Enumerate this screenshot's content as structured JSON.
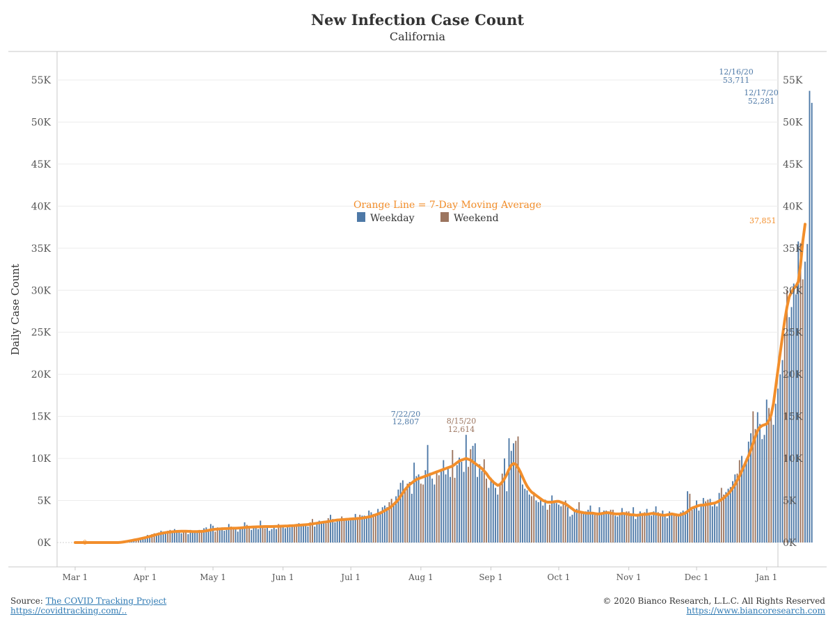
{
  "header": {
    "title": "New Infection Case Count",
    "subtitle": "California"
  },
  "footer": {
    "source_prefix": "Source:",
    "source_name": "The COVID Tracking Project",
    "source_url": "https://covidtracking.com/..",
    "copyright": "© 2020 Bianco Research, L.L.C. All Rights Reserved",
    "site_url": "https://www.biancoresearch.com"
  },
  "colors": {
    "weekday": "#4e79a7",
    "weekend": "#9c755f",
    "moving_average": "#f28e2b",
    "text": "#333333",
    "link": "#2f7ab3"
  },
  "chart_data": {
    "type": "bar",
    "title": "New Infection Case Count",
    "subtitle": "California",
    "ylabel": "Daily Case Count",
    "xlabel": "",
    "ylim": [
      0,
      58000
    ],
    "y_ticks": [
      "0K",
      "5K",
      "10K",
      "15K",
      "20K",
      "25K",
      "30K",
      "35K",
      "40K",
      "45K",
      "50K",
      "55K"
    ],
    "y_tick_values": [
      0,
      5000,
      10000,
      15000,
      20000,
      25000,
      30000,
      35000,
      40000,
      45000,
      50000,
      55000
    ],
    "x_range": [
      "2020-02-22",
      "2021-01-06"
    ],
    "x_ticks": [
      {
        "date": "2020-03-01",
        "label": "Mar 1"
      },
      {
        "date": "2020-04-01",
        "label": "Apr 1"
      },
      {
        "date": "2020-05-01",
        "label": "May 1"
      },
      {
        "date": "2020-06-01",
        "label": "Jun 1"
      },
      {
        "date": "2020-07-01",
        "label": "Jul 1"
      },
      {
        "date": "2020-08-01",
        "label": "Aug 1"
      },
      {
        "date": "2020-09-01",
        "label": "Sep 1"
      },
      {
        "date": "2020-10-01",
        "label": "Oct 1"
      },
      {
        "date": "2020-11-01",
        "label": "Nov 1"
      },
      {
        "date": "2020-12-01",
        "label": "Dec 1"
      },
      {
        "date": "2021-01-01",
        "label": "Jan 1"
      }
    ],
    "legend": {
      "title": "Orange Line = 7-Day Moving Average",
      "placement": "center",
      "items": [
        {
          "label": "Weekday",
          "color": "#4e79a7"
        },
        {
          "label": "Weekend",
          "color": "#9c755f"
        }
      ]
    },
    "series": [
      {
        "name": "Weekday",
        "type": "bar",
        "color": "#4e79a7"
      },
      {
        "name": "Weekend",
        "type": "bar",
        "color": "#9c755f"
      },
      {
        "name": "7-Day Moving Average",
        "type": "line",
        "color": "#f28e2b"
      }
    ],
    "start_date": "2020-03-01",
    "daily_cases": [
      0,
      0,
      0,
      0,
      0,
      0,
      0,
      0,
      0,
      0,
      0,
      0,
      0,
      0,
      0,
      0,
      0,
      0,
      0,
      0,
      100,
      150,
      200,
      250,
      300,
      350,
      400,
      450,
      500,
      600,
      650,
      700,
      900,
      700,
      1000,
      1100,
      900,
      1200,
      1400,
      1300,
      1100,
      1400,
      1500,
      1200,
      1600,
      1300,
      1300,
      1100,
      1400,
      1300,
      1000,
      1500,
      1400,
      1300,
      1200,
      1500,
      1300,
      1700,
      1800,
      1400,
      2200,
      2000,
      1300,
      1800,
      1500,
      1800,
      1400,
      1500,
      2200,
      1900,
      1700,
      1800,
      1300,
      1700,
      1900,
      2400,
      2100,
      1900,
      1500,
      1700,
      1800,
      1600,
      2600,
      2000,
      1700,
      1900,
      1400,
      1600,
      2000,
      1600,
      2200,
      1800,
      1900,
      1700,
      2000,
      1800,
      2100,
      2000,
      2200,
      2300,
      2100,
      2000,
      2200,
      1900,
      2400,
      2800,
      1900,
      2400,
      2600,
      2500,
      2400,
      2300,
      2900,
      3300,
      2800,
      2400,
      2600,
      2700,
      3100,
      2800,
      2900,
      2600,
      2800,
      2700,
      3400,
      2900,
      3300,
      3200,
      3200,
      2900,
      3800,
      3600,
      3400,
      3300,
      4000,
      3700,
      4200,
      4400,
      4200,
      4800,
      5200,
      4400,
      5500,
      6300,
      7100,
      7400,
      6200,
      7000,
      7200,
      5800,
      9500,
      7900,
      8100,
      7000,
      6900,
      8600,
      11600,
      8300,
      7600,
      6900,
      8400,
      8000,
      8700,
      9800,
      8100,
      8900,
      7800,
      11000,
      7700,
      9200,
      10100,
      9600,
      8400,
      12807,
      9000,
      11100,
      11500,
      11800,
      7800,
      9300,
      8500,
      9900,
      7600,
      6500,
      7700,
      7400,
      6500,
      5700,
      7000,
      8200,
      10000,
      6100,
      12400,
      10900,
      11800,
      12100,
      12614,
      8200,
      6900,
      6400,
      6200,
      5700,
      5500,
      6000,
      5000,
      4800,
      5200,
      4400,
      5100,
      3900,
      4500,
      5600,
      4800,
      4700,
      4500,
      4300,
      4700,
      5000,
      4200,
      3100,
      3300,
      3800,
      4000,
      4800,
      3500,
      3400,
      3700,
      3900,
      4400,
      3500,
      3300,
      3400,
      4200,
      3600,
      3800,
      3800,
      3500,
      3900,
      3900,
      3200,
      3100,
      3500,
      4100,
      3400,
      3700,
      3700,
      3200,
      4200,
      2800,
      3400,
      3700,
      3300,
      3600,
      4000,
      3500,
      3200,
      3700,
      4300,
      3600,
      3400,
      3800,
      3300,
      2900,
      3700,
      3500,
      3400,
      3300,
      3100,
      3600,
      3800,
      3700,
      6100,
      5800,
      3900,
      4200,
      5000,
      3800,
      4600,
      5300,
      4900,
      5100,
      5200,
      4300,
      4800,
      4300,
      5900,
      6500,
      5700,
      6000,
      6400,
      6600,
      7300,
      8100,
      8200,
      9800,
      10300,
      9100,
      10000,
      12000,
      13000,
      15600,
      13500,
      15500,
      14100,
      12300,
      12800,
      17000,
      16000,
      15200,
      14000,
      16500,
      18300,
      20000,
      21700,
      24800,
      30000,
      26800,
      28000,
      30800,
      29500,
      35800,
      35600,
      31300,
      33400,
      35500,
      53711,
      52281
    ],
    "moving_average_7day": [
      0,
      0,
      0,
      0,
      0,
      0,
      0,
      0,
      0,
      0,
      0,
      0,
      0,
      0,
      0,
      0,
      0,
      0,
      0,
      0,
      20,
      50,
      90,
      140,
      190,
      240,
      300,
      350,
      400,
      460,
      520,
      580,
      650,
      720,
      800,
      880,
      950,
      1020,
      1080,
      1130,
      1180,
      1220,
      1250,
      1280,
      1300,
      1320,
      1330,
      1340,
      1350,
      1340,
      1330,
      1320,
      1310,
      1300,
      1310,
      1320,
      1330,
      1350,
      1400,
      1450,
      1500,
      1550,
      1580,
      1600,
      1620,
      1640,
      1650,
      1660,
      1680,
      1700,
      1700,
      1700,
      1720,
      1740,
      1760,
      1790,
      1810,
      1830,
      1840,
      1850,
      1860,
      1870,
      1880,
      1890,
      1900,
      1900,
      1900,
      1900,
      1910,
      1920,
      1930,
      1940,
      1950,
      1960,
      1970,
      1990,
      2000,
      2020,
      2040,
      2060,
      2080,
      2100,
      2120,
      2140,
      2180,
      2220,
      2260,
      2300,
      2340,
      2380,
      2420,
      2460,
      2500,
      2550,
      2600,
      2640,
      2680,
      2700,
      2720,
      2740,
      2760,
      2780,
      2800,
      2820,
      2840,
      2860,
      2880,
      2900,
      2950,
      3000,
      3050,
      3100,
      3200,
      3300,
      3400,
      3500,
      3650,
      3800,
      3950,
      4100,
      4300,
      4550,
      4800,
      5100,
      5500,
      5900,
      6300,
      6600,
      6900,
      7100,
      7300,
      7500,
      7600,
      7700,
      7800,
      7900,
      8000,
      8100,
      8200,
      8300,
      8400,
      8500,
      8600,
      8700,
      8800,
      8900,
      9000,
      9100,
      9300,
      9500,
      9700,
      9800,
      9900,
      10000,
      9900,
      9800,
      9600,
      9400,
      9200,
      9000,
      8800,
      8500,
      8200,
      7800,
      7500,
      7200,
      7000,
      6800,
      6900,
      7200,
      7600,
      8100,
      8700,
      9200,
      9400,
      9300,
      8900,
      8400,
      7800,
      7200,
      6700,
      6300,
      6000,
      5800,
      5600,
      5400,
      5200,
      5000,
      4900,
      4800,
      4800,
      4800,
      4850,
      4900,
      4900,
      4800,
      4700,
      4600,
      4400,
      4200,
      4000,
      3800,
      3700,
      3650,
      3600,
      3550,
      3500,
      3500,
      3500,
      3500,
      3450,
      3400,
      3400,
      3450,
      3500,
      3550,
      3550,
      3500,
      3450,
      3400,
      3400,
      3400,
      3450,
      3450,
      3400,
      3350,
      3300,
      3300,
      3250,
      3250,
      3300,
      3350,
      3350,
      3350,
      3400,
      3450,
      3450,
      3400,
      3350,
      3300,
      3250,
      3250,
      3300,
      3350,
      3400,
      3350,
      3300,
      3250,
      3300,
      3400,
      3500,
      3700,
      3900,
      4100,
      4200,
      4300,
      4400,
      4450,
      4450,
      4500,
      4550,
      4600,
      4650,
      4700,
      4800,
      4950,
      5100,
      5300,
      5550,
      5800,
      6100,
      6500,
      6900,
      7400,
      7900,
      8500,
      9100,
      9700,
      10300,
      11000,
      11800,
      12600,
      13300,
      13700,
      13900,
      14000,
      14100,
      14500,
      15200,
      16500,
      18500,
      20500,
      22500,
      24500,
      26400,
      28000,
      29200,
      29800,
      30200,
      30500,
      31000,
      33000,
      35800,
      37851
    ],
    "annotations": [
      {
        "date": "7/22/20",
        "value": "12,807",
        "series": "Weekday"
      },
      {
        "date": "8/15/20",
        "value": "12,614",
        "series": "Weekend"
      },
      {
        "date": "12/16/20",
        "value": "53,711",
        "series": "Weekday"
      },
      {
        "date": "12/17/20",
        "value": "52,281",
        "series": "Weekday"
      },
      {
        "value": "37,851",
        "series": "7-Day Moving Average"
      },
      {
        "value": "0",
        "series": "7-Day Moving Average"
      }
    ],
    "grid": true
  }
}
